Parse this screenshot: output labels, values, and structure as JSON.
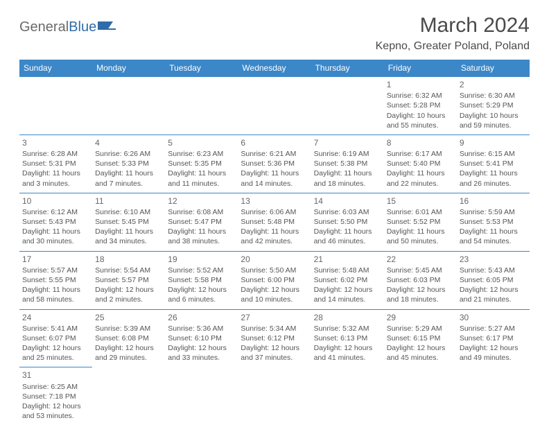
{
  "logo": {
    "text1": "General",
    "text2": "Blue"
  },
  "title": "March 2024",
  "location": "Kepno, Greater Poland, Poland",
  "colors": {
    "header_bg": "#3b87c8",
    "header_text": "#ffffff",
    "border": "#3b87c8",
    "body_text": "#555555",
    "logo_gray": "#6a6a6a",
    "logo_blue": "#2f6ca8"
  },
  "weekdays": [
    "Sunday",
    "Monday",
    "Tuesday",
    "Wednesday",
    "Thursday",
    "Friday",
    "Saturday"
  ],
  "weeks": [
    [
      null,
      null,
      null,
      null,
      null,
      {
        "n": "1",
        "sr": "Sunrise: 6:32 AM",
        "ss": "Sunset: 5:28 PM",
        "dl": "Daylight: 10 hours and 55 minutes."
      },
      {
        "n": "2",
        "sr": "Sunrise: 6:30 AM",
        "ss": "Sunset: 5:29 PM",
        "dl": "Daylight: 10 hours and 59 minutes."
      }
    ],
    [
      {
        "n": "3",
        "sr": "Sunrise: 6:28 AM",
        "ss": "Sunset: 5:31 PM",
        "dl": "Daylight: 11 hours and 3 minutes."
      },
      {
        "n": "4",
        "sr": "Sunrise: 6:26 AM",
        "ss": "Sunset: 5:33 PM",
        "dl": "Daylight: 11 hours and 7 minutes."
      },
      {
        "n": "5",
        "sr": "Sunrise: 6:23 AM",
        "ss": "Sunset: 5:35 PM",
        "dl": "Daylight: 11 hours and 11 minutes."
      },
      {
        "n": "6",
        "sr": "Sunrise: 6:21 AM",
        "ss": "Sunset: 5:36 PM",
        "dl": "Daylight: 11 hours and 14 minutes."
      },
      {
        "n": "7",
        "sr": "Sunrise: 6:19 AM",
        "ss": "Sunset: 5:38 PM",
        "dl": "Daylight: 11 hours and 18 minutes."
      },
      {
        "n": "8",
        "sr": "Sunrise: 6:17 AM",
        "ss": "Sunset: 5:40 PM",
        "dl": "Daylight: 11 hours and 22 minutes."
      },
      {
        "n": "9",
        "sr": "Sunrise: 6:15 AM",
        "ss": "Sunset: 5:41 PM",
        "dl": "Daylight: 11 hours and 26 minutes."
      }
    ],
    [
      {
        "n": "10",
        "sr": "Sunrise: 6:12 AM",
        "ss": "Sunset: 5:43 PM",
        "dl": "Daylight: 11 hours and 30 minutes."
      },
      {
        "n": "11",
        "sr": "Sunrise: 6:10 AM",
        "ss": "Sunset: 5:45 PM",
        "dl": "Daylight: 11 hours and 34 minutes."
      },
      {
        "n": "12",
        "sr": "Sunrise: 6:08 AM",
        "ss": "Sunset: 5:47 PM",
        "dl": "Daylight: 11 hours and 38 minutes."
      },
      {
        "n": "13",
        "sr": "Sunrise: 6:06 AM",
        "ss": "Sunset: 5:48 PM",
        "dl": "Daylight: 11 hours and 42 minutes."
      },
      {
        "n": "14",
        "sr": "Sunrise: 6:03 AM",
        "ss": "Sunset: 5:50 PM",
        "dl": "Daylight: 11 hours and 46 minutes."
      },
      {
        "n": "15",
        "sr": "Sunrise: 6:01 AM",
        "ss": "Sunset: 5:52 PM",
        "dl": "Daylight: 11 hours and 50 minutes."
      },
      {
        "n": "16",
        "sr": "Sunrise: 5:59 AM",
        "ss": "Sunset: 5:53 PM",
        "dl": "Daylight: 11 hours and 54 minutes."
      }
    ],
    [
      {
        "n": "17",
        "sr": "Sunrise: 5:57 AM",
        "ss": "Sunset: 5:55 PM",
        "dl": "Daylight: 11 hours and 58 minutes."
      },
      {
        "n": "18",
        "sr": "Sunrise: 5:54 AM",
        "ss": "Sunset: 5:57 PM",
        "dl": "Daylight: 12 hours and 2 minutes."
      },
      {
        "n": "19",
        "sr": "Sunrise: 5:52 AM",
        "ss": "Sunset: 5:58 PM",
        "dl": "Daylight: 12 hours and 6 minutes."
      },
      {
        "n": "20",
        "sr": "Sunrise: 5:50 AM",
        "ss": "Sunset: 6:00 PM",
        "dl": "Daylight: 12 hours and 10 minutes."
      },
      {
        "n": "21",
        "sr": "Sunrise: 5:48 AM",
        "ss": "Sunset: 6:02 PM",
        "dl": "Daylight: 12 hours and 14 minutes."
      },
      {
        "n": "22",
        "sr": "Sunrise: 5:45 AM",
        "ss": "Sunset: 6:03 PM",
        "dl": "Daylight: 12 hours and 18 minutes."
      },
      {
        "n": "23",
        "sr": "Sunrise: 5:43 AM",
        "ss": "Sunset: 6:05 PM",
        "dl": "Daylight: 12 hours and 21 minutes."
      }
    ],
    [
      {
        "n": "24",
        "sr": "Sunrise: 5:41 AM",
        "ss": "Sunset: 6:07 PM",
        "dl": "Daylight: 12 hours and 25 minutes."
      },
      {
        "n": "25",
        "sr": "Sunrise: 5:39 AM",
        "ss": "Sunset: 6:08 PM",
        "dl": "Daylight: 12 hours and 29 minutes."
      },
      {
        "n": "26",
        "sr": "Sunrise: 5:36 AM",
        "ss": "Sunset: 6:10 PM",
        "dl": "Daylight: 12 hours and 33 minutes."
      },
      {
        "n": "27",
        "sr": "Sunrise: 5:34 AM",
        "ss": "Sunset: 6:12 PM",
        "dl": "Daylight: 12 hours and 37 minutes."
      },
      {
        "n": "28",
        "sr": "Sunrise: 5:32 AM",
        "ss": "Sunset: 6:13 PM",
        "dl": "Daylight: 12 hours and 41 minutes."
      },
      {
        "n": "29",
        "sr": "Sunrise: 5:29 AM",
        "ss": "Sunset: 6:15 PM",
        "dl": "Daylight: 12 hours and 45 minutes."
      },
      {
        "n": "30",
        "sr": "Sunrise: 5:27 AM",
        "ss": "Sunset: 6:17 PM",
        "dl": "Daylight: 12 hours and 49 minutes."
      }
    ],
    [
      {
        "n": "31",
        "sr": "Sunrise: 6:25 AM",
        "ss": "Sunset: 7:18 PM",
        "dl": "Daylight: 12 hours and 53 minutes."
      },
      null,
      null,
      null,
      null,
      null,
      null
    ]
  ]
}
